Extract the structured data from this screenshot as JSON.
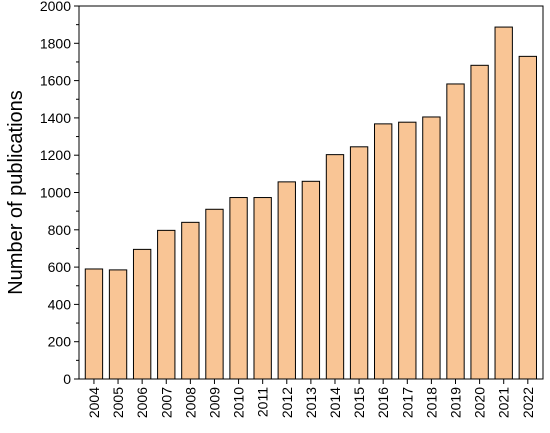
{
  "chart_data": {
    "type": "bar",
    "title": "",
    "xlabel": "",
    "ylabel": "Number of publications",
    "categories": [
      "2004",
      "2005",
      "2006",
      "2007",
      "2008",
      "2009",
      "2010",
      "2011",
      "2012",
      "2013",
      "2014",
      "2015",
      "2016",
      "2017",
      "2018",
      "2019",
      "2020",
      "2021",
      "2022"
    ],
    "values": [
      590,
      585,
      695,
      797,
      840,
      910,
      973,
      973,
      1057,
      1060,
      1203,
      1245,
      1368,
      1377,
      1405,
      1582,
      1682,
      1887,
      1730
    ],
    "ylim": [
      0,
      2000
    ],
    "yticks": [
      0,
      200,
      400,
      600,
      800,
      1000,
      1200,
      1400,
      1600,
      1800,
      2000
    ],
    "grid": false,
    "legend": "none",
    "colors": {
      "bar_fill": "#F9C595",
      "bar_stroke": "#000000"
    }
  }
}
